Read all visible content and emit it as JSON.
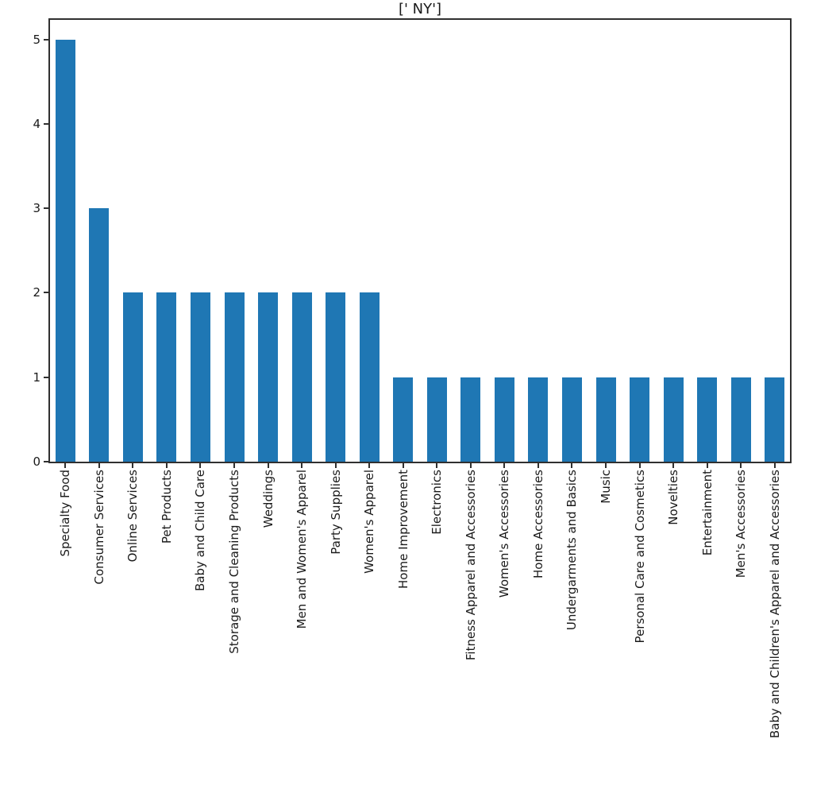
{
  "chart_data": {
    "type": "bar",
    "title": "[' NY']",
    "categories": [
      "Specialty Food",
      "Consumer Services",
      "Online Services",
      "Pet Products",
      "Baby and Child Care",
      "Storage and Cleaning Products",
      "Weddings",
      "Men and Women's Apparel",
      "Party Supplies",
      "Women's Apparel",
      "Home Improvement",
      "Electronics",
      "Fitness Apparel and Accessories",
      "Women's Accessories",
      "Home Accessories",
      "Undergarments and Basics",
      "Music",
      "Personal Care and Cosmetics",
      "Novelties",
      "Entertainment",
      "Men's Accessories",
      "Baby and Children's Apparel and Accessories"
    ],
    "values": [
      5,
      3,
      2,
      2,
      2,
      2,
      2,
      2,
      2,
      2,
      1,
      1,
      1,
      1,
      1,
      1,
      1,
      1,
      1,
      1,
      1,
      1
    ],
    "xlabel": "",
    "ylabel": "",
    "ylim": [
      0,
      5.25
    ],
    "yticks": [
      0,
      1,
      2,
      3,
      4,
      5
    ],
    "bar_color": "#1f77b4",
    "axis_color": "#303030",
    "grid": false,
    "legend": false
  }
}
